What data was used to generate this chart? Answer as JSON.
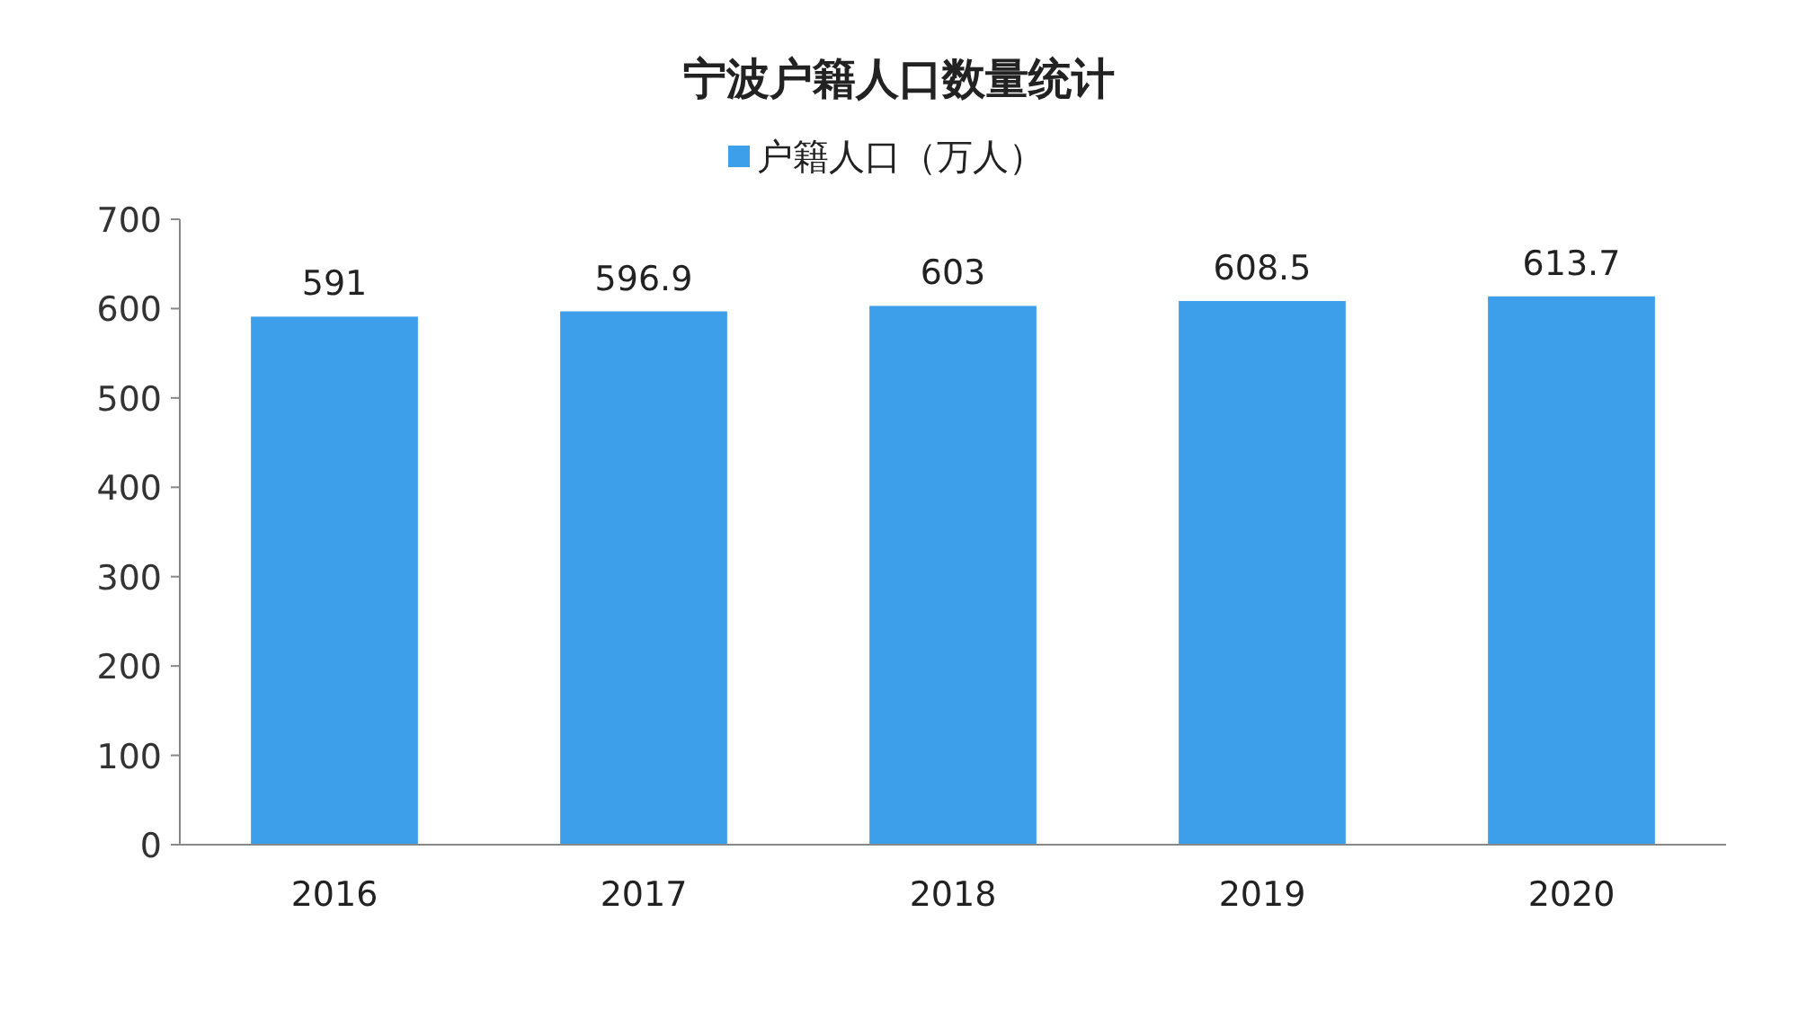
{
  "chart_data": {
    "type": "bar",
    "title": "宁波户籍人口数量统计",
    "categories": [
      "2016",
      "2017",
      "2018",
      "2019",
      "2020"
    ],
    "series": [
      {
        "name": "户籍人口（万人）",
        "color": "#3d9ee9",
        "values": [
          591,
          596.9,
          603,
          608.5,
          613.7
        ]
      }
    ],
    "ylim": [
      0,
      700
    ],
    "yticks": [
      0,
      100,
      200,
      300,
      400,
      500,
      600,
      700
    ],
    "data_labels": true,
    "legend": "top"
  }
}
